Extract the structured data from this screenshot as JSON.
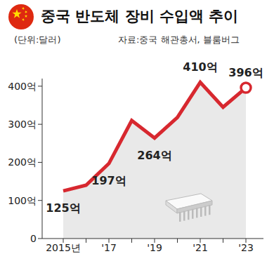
{
  "chart_data": {
    "type": "line",
    "title": "중국 반도체 장비 수입액 추이",
    "subtitle": "(단위:달러)",
    "source": "자료:중국 해관총서, 블룸버그",
    "categories": [
      "2015년",
      null,
      "'17",
      null,
      "'19",
      null,
      "'21",
      null,
      "'23"
    ],
    "values": [
      125,
      140,
      197,
      310,
      264,
      318,
      410,
      345,
      396
    ],
    "value_labels": [
      "125억",
      null,
      "197억",
      null,
      "264억",
      null,
      "410억",
      null,
      "396억"
    ],
    "data_labels": true,
    "color": "#d7282f",
    "ylim": [
      0,
      420
    ],
    "yticks": [
      0,
      {
        "value": 100,
        "label": "100억"
      },
      {
        "value": 200,
        "label": "200억"
      },
      {
        "value": 300,
        "label": "300억"
      },
      {
        "value": 400,
        "label": "400억"
      }
    ],
    "grid": false
  }
}
